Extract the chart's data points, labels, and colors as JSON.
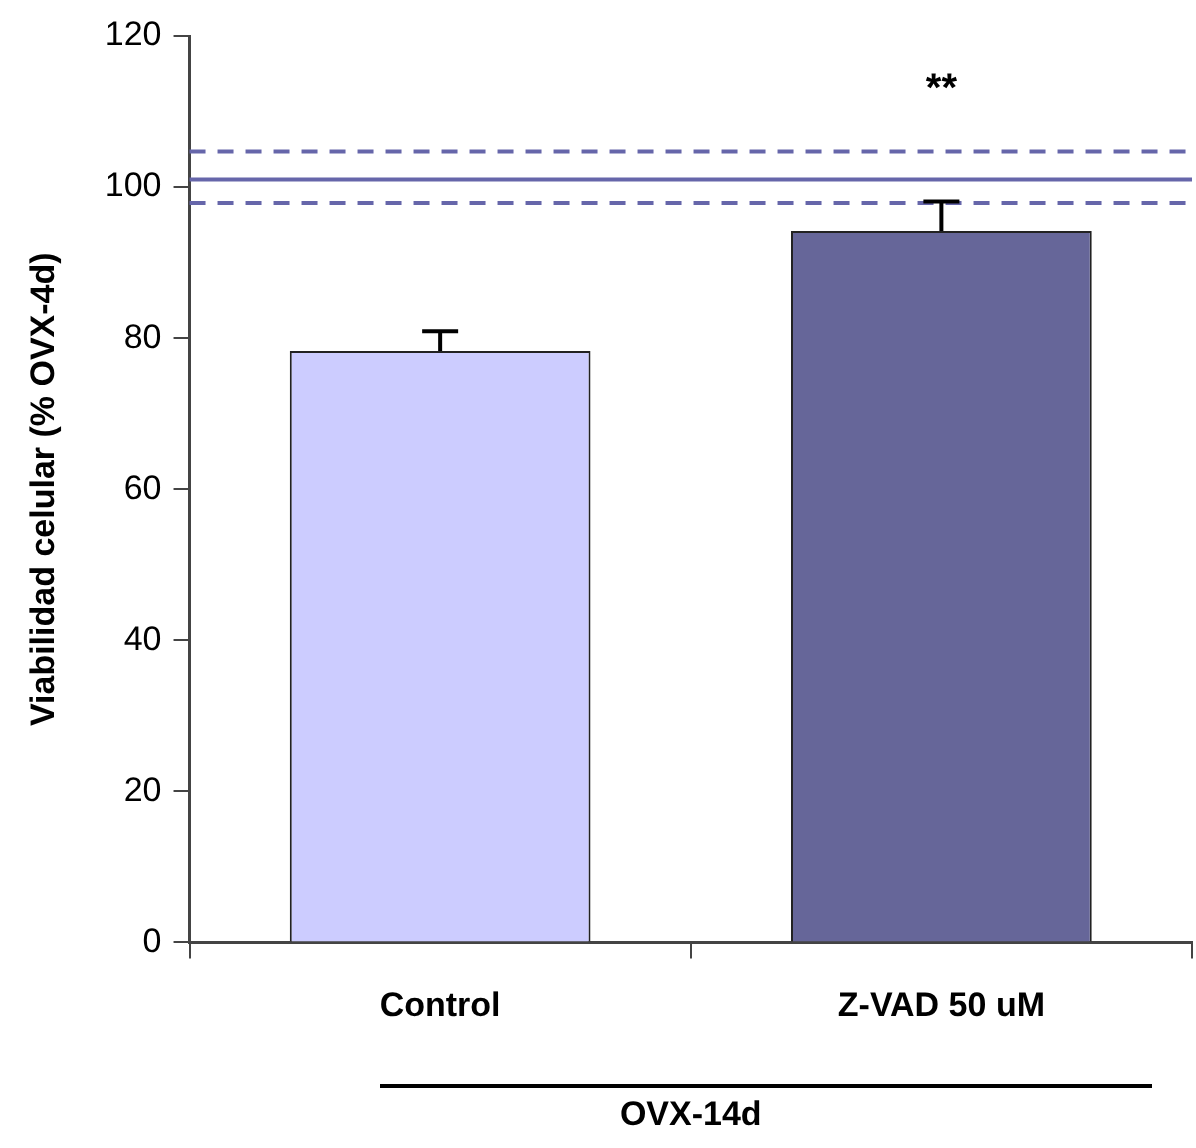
{
  "chart_data": {
    "type": "bar",
    "categories": [
      "Control",
      "Z-VAD 50 uM"
    ],
    "values": [
      78.3,
      94.2
    ],
    "errors": [
      2.6,
      3.9
    ],
    "colors": [
      "#ccccff",
      "#666699"
    ],
    "ylabel": "Viabilidad celular (% OVX-4d)",
    "xlabel": "OVX-14d",
    "ylim": [
      0,
      120
    ],
    "yticks": [
      0,
      20,
      40,
      60,
      80,
      100,
      120
    ],
    "grid": false,
    "legend": false,
    "ref_lines": [
      {
        "axis": "y",
        "value": 101,
        "color": "#6666aa",
        "line_style": "solid"
      },
      {
        "axis": "y",
        "value": 104.7,
        "color": "#6666aa",
        "line_style": "dashed"
      },
      {
        "axis": "y",
        "value": 97.9,
        "color": "#6666aa",
        "line_style": "dashed"
      }
    ],
    "annotations": [
      "**"
    ]
  }
}
